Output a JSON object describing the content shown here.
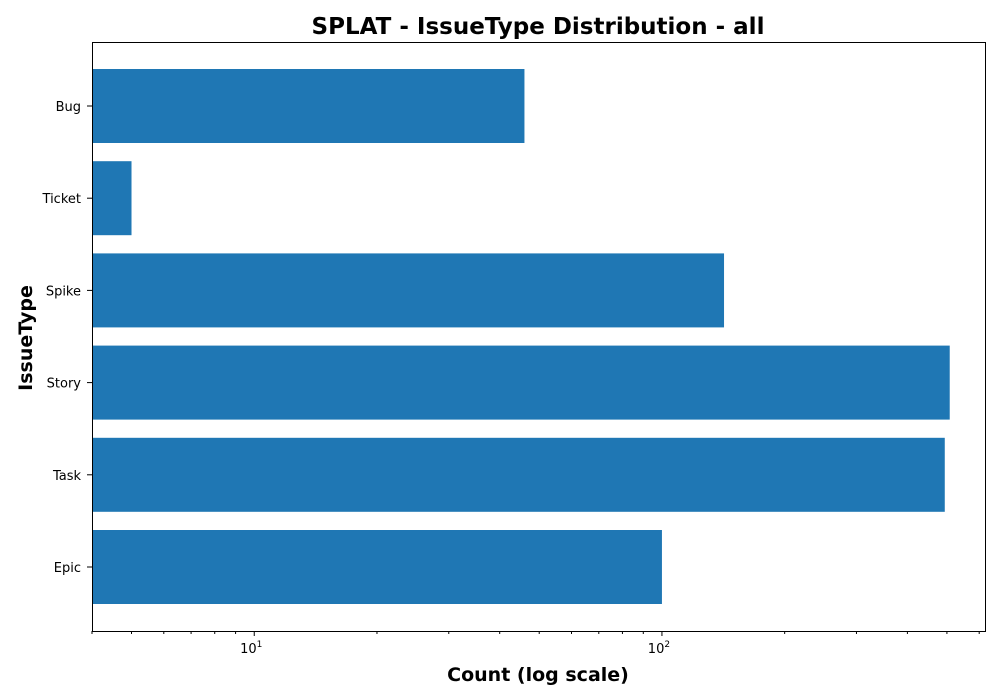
{
  "chart_data": {
    "type": "bar",
    "orientation": "horizontal",
    "title": "SPLAT - IssueType Distribution - all",
    "xlabel": "Count (log scale)",
    "ylabel": "IssueType",
    "x_scale": "log",
    "xlim": [
      4,
      620
    ],
    "x_major_ticks": [
      {
        "base": "10",
        "exp": "1",
        "value": 10
      },
      {
        "base": "10",
        "exp": "2",
        "value": 100
      }
    ],
    "categories": [
      "Bug",
      "Ticket",
      "Spike",
      "Story",
      "Task",
      "Epic"
    ],
    "values": [
      46,
      5,
      142,
      508,
      494,
      100
    ],
    "color": "#1f77b4",
    "grid": false,
    "legend": "none"
  }
}
